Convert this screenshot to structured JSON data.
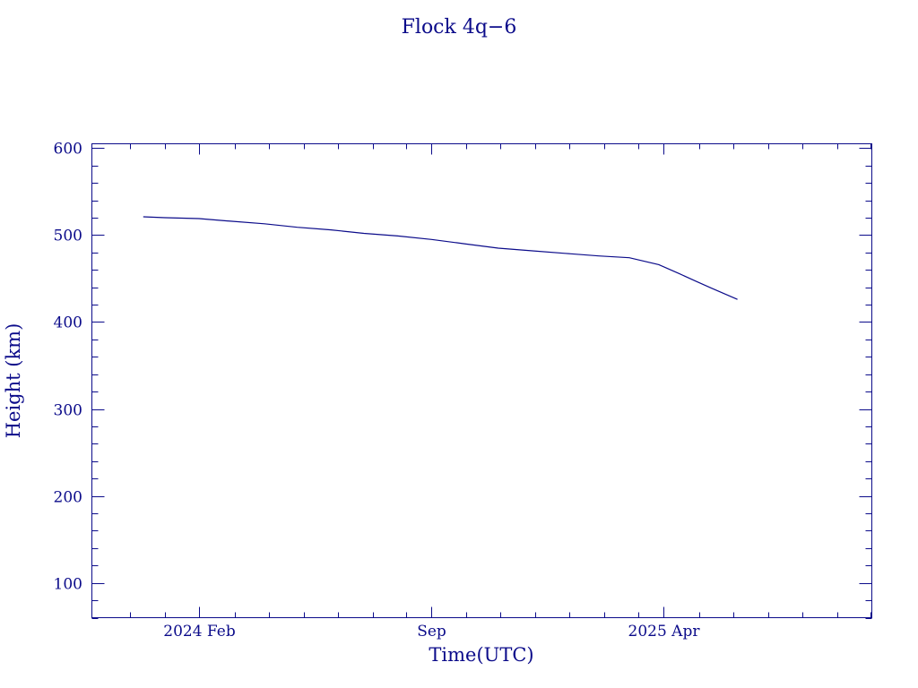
{
  "chart_data": {
    "type": "line",
    "title": "Flock 4q−6",
    "xlabel": "Time(UTC)",
    "ylabel": "Height (km)",
    "colors": {
      "axis": "#0b0b8a",
      "line": "#0b0b8a",
      "background": "#ffffff"
    },
    "grid": false,
    "xlim": [
      "2023-10-26",
      "2025-10-09"
    ],
    "ylim": [
      60,
      605
    ],
    "x_ticks": [
      {
        "date": "2024-02-01",
        "label": "2024 Feb"
      },
      {
        "date": "2024-09-01",
        "label": "Sep"
      },
      {
        "date": "2025-04-01",
        "label": "2025 Apr"
      }
    ],
    "x_minor_ticks": [
      "2023-11-30",
      "2024-01-01",
      "2024-03-05",
      "2024-04-05",
      "2024-05-07",
      "2024-06-07",
      "2024-07-09",
      "2024-08-09",
      "2024-10-03",
      "2024-11-03",
      "2024-12-05",
      "2025-01-05",
      "2025-02-06",
      "2025-03-09",
      "2025-05-04",
      "2025-06-04",
      "2025-07-06",
      "2025-08-06",
      "2025-09-07",
      "2025-10-08"
    ],
    "y_ticks": [
      100,
      200,
      300,
      400,
      500,
      600
    ],
    "y_minor_step": 20,
    "series": [
      {
        "x": [
          "2023-12-12",
          "2024-01-01",
          "2024-02-01",
          "2024-03-01",
          "2024-04-01",
          "2024-05-01",
          "2024-06-01",
          "2024-07-01",
          "2024-08-01",
          "2024-09-01",
          "2024-10-01",
          "2024-11-01",
          "2024-12-01",
          "2025-01-01",
          "2025-02-01",
          "2025-03-01",
          "2025-03-28",
          "2025-04-15",
          "2025-05-01",
          "2025-05-15",
          "2025-06-08"
        ],
        "values": [
          521,
          520,
          519,
          516,
          513,
          509,
          506,
          502,
          499,
          495,
          490,
          485,
          482,
          479,
          476,
          474,
          466,
          456,
          447,
          439,
          426
        ]
      }
    ]
  }
}
